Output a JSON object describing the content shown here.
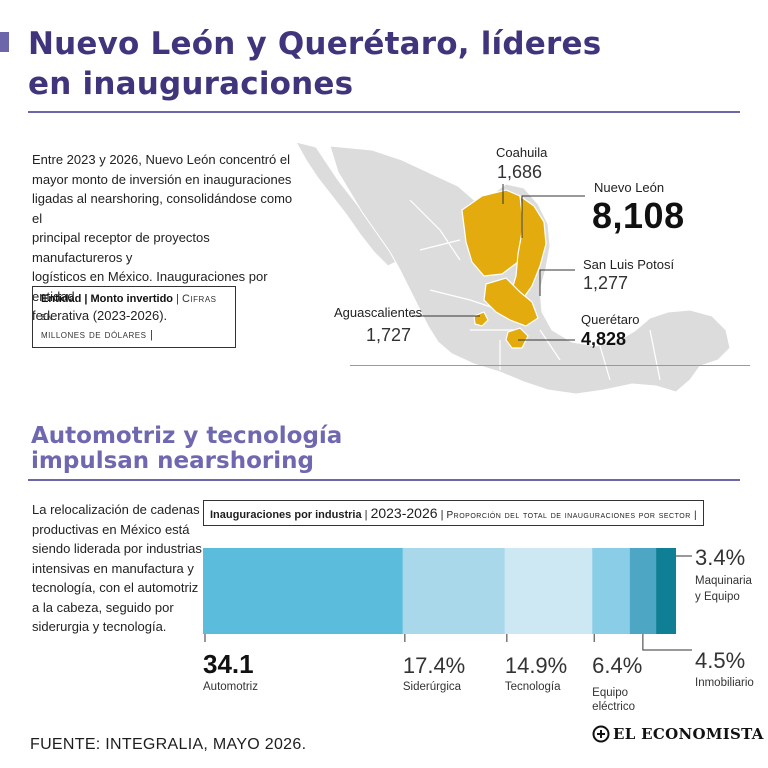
{
  "header": {
    "title_line1": "Nuevo León y Querétaro, líderes",
    "title_line2": "en inauguraciones"
  },
  "intro": {
    "lines": [
      "Entre 2023 y 2026, Nuevo León concentró el",
      "mayor monto de inversión en inauguraciones",
      "ligadas al nearshoring, consolidándose como el",
      "principal receptor de proyectos manufactureros y",
      "logísticos en México. Inauguraciones por entidad",
      "federativa (2023-2026)."
    ],
    "legend_bold": "Entidad | Monto invertido",
    "legend_sep": " | ",
    "legend_rest_1": "Cifras en",
    "legend_rest_2": "millones de dólares |"
  },
  "map": {
    "states": [
      {
        "name": "Coahuila",
        "value": "1,686"
      },
      {
        "name": "Nuevo León",
        "value": "8,108"
      },
      {
        "name": "San Luis Potosí",
        "value": "1,277"
      },
      {
        "name": "Querétaro",
        "value": "4,828"
      },
      {
        "name": "Aguascalientes",
        "value": "1,727"
      }
    ],
    "colors": {
      "highlight": "#e3ab0d",
      "base": "#dcdcdc",
      "outline": "#ffffff"
    }
  },
  "section2": {
    "title_line1": "Automotriz y tecnología",
    "title_line2": "impulsan nearshoring",
    "lines": [
      "La relocalización de cadenas",
      "productivas en México está",
      "siendo liderada por industrias",
      "intensivas en manufactura y",
      "tecnología, con el automotriz",
      "a la cabeza, seguido por",
      "siderurgia y tecnología."
    ],
    "chart_header_bold": "Inauguraciones por industria",
    "chart_header_years": "2023-2026",
    "chart_header_rest": "Proporción del total de inauguraciones por sector |"
  },
  "chart_data": {
    "type": "bar",
    "orientation": "horizontal-stacked-100",
    "categories": [
      "Automotriz",
      "Siderúrgica",
      "Tecnología",
      "Equipo eléctrico",
      "Inmobiliario",
      "Maquinaria y Equipo"
    ],
    "values": [
      34.1,
      17.4,
      14.9,
      6.4,
      4.5,
      3.4
    ],
    "value_labels": [
      "34.1",
      "17.4%",
      "14.9%",
      "6.4%",
      "4.5%",
      "3.4%"
    ],
    "colors": [
      "#5cbcdc",
      "#a9d8ea",
      "#cde8f2",
      "#8acde6",
      "#4da6c4",
      "#0f7f96"
    ],
    "xlim": [
      0,
      80.7
    ],
    "legend": "none"
  },
  "footer": {
    "source": "FUENTE: INTEGRALIA, MAYO 2026.",
    "logo": "EL ECONOMISTA"
  }
}
